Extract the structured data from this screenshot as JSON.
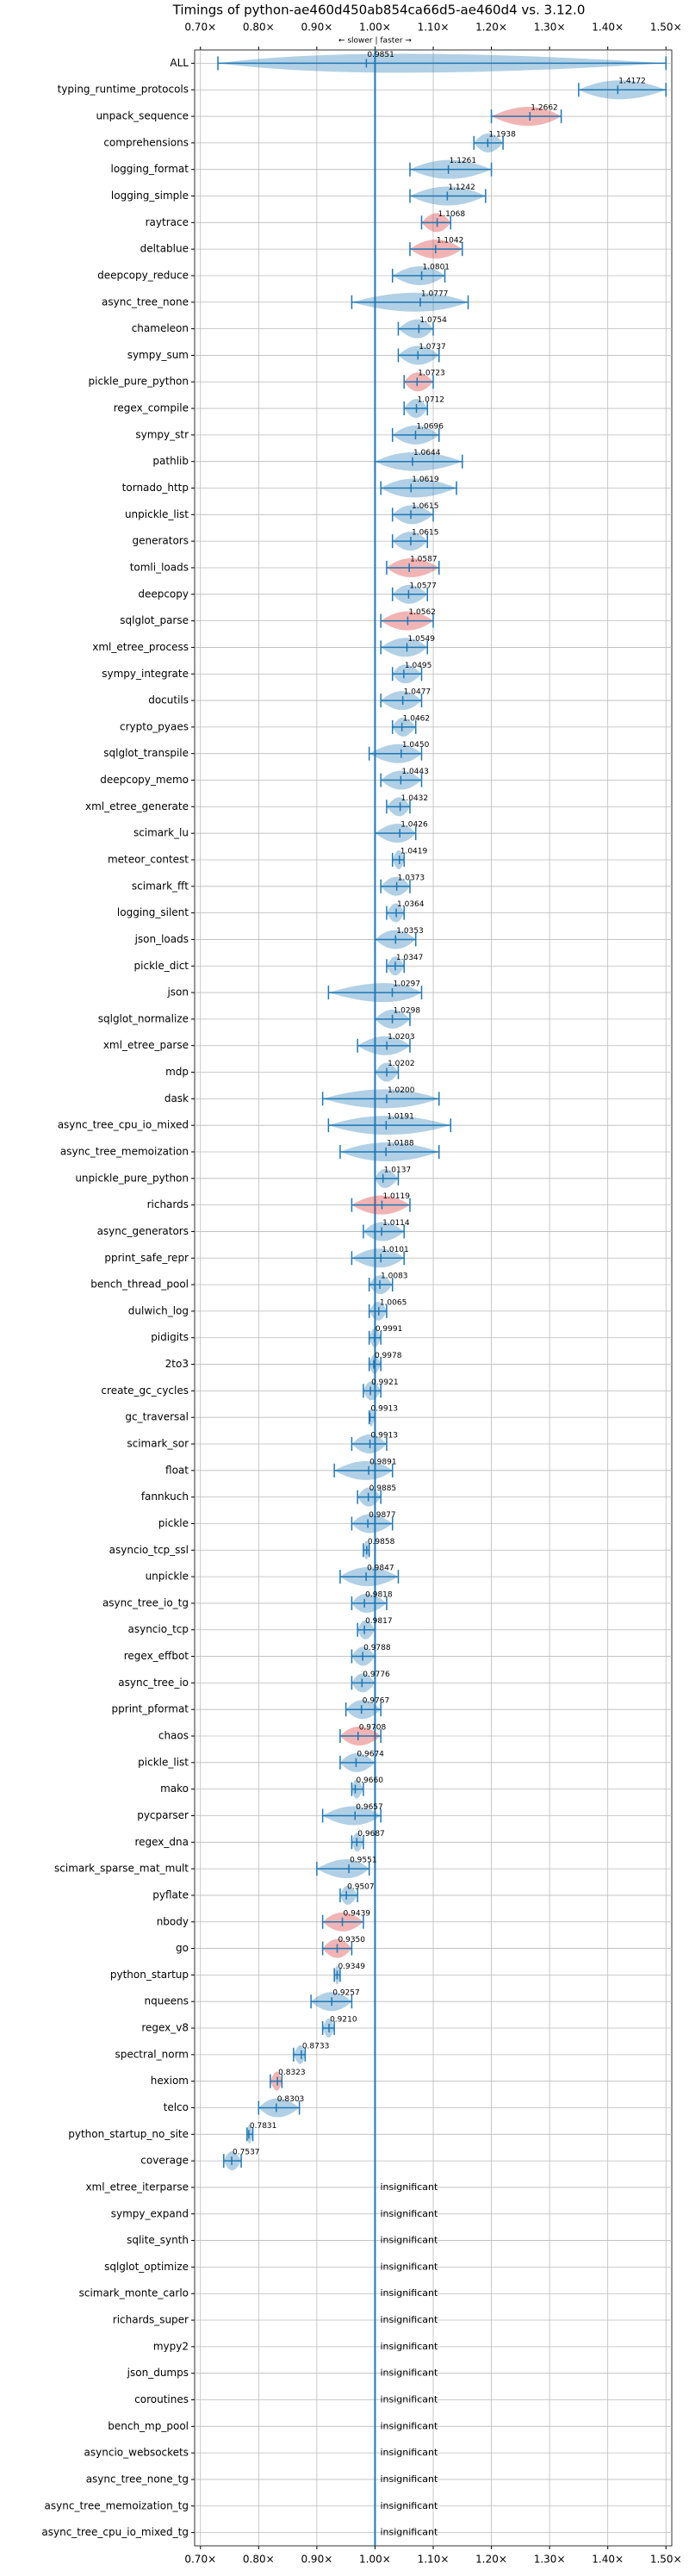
{
  "chart_data": {
    "type": "violin",
    "title": "Timings of python-ae460d450ab854ca66d5-ae460d4 vs. 3.12.0",
    "annotation": "← slower | faster →",
    "xlim": [
      0.69,
      1.51
    ],
    "xticks": [
      {
        "value": 0.7,
        "label": "0.70×"
      },
      {
        "value": 0.8,
        "label": "0.80×"
      },
      {
        "value": 0.9,
        "label": "0.90×"
      },
      {
        "value": 1.0,
        "label": "1.00×"
      },
      {
        "value": 1.1,
        "label": "1.10×"
      },
      {
        "value": 1.2,
        "label": "1.20×"
      },
      {
        "value": 1.3,
        "label": "1.30×"
      },
      {
        "value": 1.4,
        "label": "1.40×"
      },
      {
        "value": 1.5,
        "label": "1.50×"
      }
    ],
    "baseline": 1,
    "grid": true,
    "categories": [
      "ALL",
      "typing_runtime_protocols",
      "unpack_sequence",
      "comprehensions",
      "logging_format",
      "logging_simple",
      "raytrace",
      "deltablue",
      "deepcopy_reduce",
      "async_tree_none",
      "chameleon",
      "sympy_sum",
      "pickle_pure_python",
      "regex_compile",
      "sympy_str",
      "pathlib",
      "tornado_http",
      "unpickle_list",
      "generators",
      "tomli_loads",
      "deepcopy",
      "sqlglot_parse",
      "xml_etree_process",
      "sympy_integrate",
      "docutils",
      "crypto_pyaes",
      "sqlglot_transpile",
      "deepcopy_memo",
      "xml_etree_generate",
      "scimark_lu",
      "meteor_contest",
      "scimark_fft",
      "logging_silent",
      "json_loads",
      "pickle_dict",
      "json",
      "sqlglot_normalize",
      "xml_etree_parse",
      "mdp",
      "dask",
      "async_tree_cpu_io_mixed",
      "async_tree_memoization",
      "unpickle_pure_python",
      "richards",
      "async_generators",
      "pprint_safe_repr",
      "bench_thread_pool",
      "dulwich_log",
      "pidigits",
      "2to3",
      "create_gc_cycles",
      "gc_traversal",
      "scimark_sor",
      "float",
      "fannkuch",
      "pickle",
      "asyncio_tcp_ssl",
      "unpickle",
      "async_tree_io_tg",
      "asyncio_tcp",
      "regex_effbot",
      "async_tree_io",
      "pprint_pformat",
      "chaos",
      "pickle_list",
      "mako",
      "pycparser",
      "regex_dna",
      "scimark_sparse_mat_mult",
      "pyflate",
      "nbody",
      "go",
      "python_startup",
      "nqueens",
      "regex_v8",
      "spectral_norm",
      "hexiom",
      "telco",
      "python_startup_no_site",
      "coverage",
      "xml_etree_iterparse",
      "sympy_expand",
      "sqlite_synth",
      "sqlglot_optimize",
      "scimark_monte_carlo",
      "richards_super",
      "mypy2",
      "json_dumps",
      "coroutines",
      "bench_mp_pool",
      "asyncio_websockets",
      "async_tree_none_tg",
      "async_tree_memoization_tg",
      "async_tree_cpu_io_mixed_tg"
    ],
    "values": [
      0.9851,
      1.4172,
      1.2662,
      1.1938,
      1.1261,
      1.1242,
      1.1068,
      1.1042,
      1.0801,
      1.0777,
      1.0754,
      1.0737,
      1.0723,
      1.0712,
      1.0696,
      1.0644,
      1.0619,
      1.0615,
      1.0615,
      1.0587,
      1.0577,
      1.0562,
      1.0549,
      1.0495,
      1.0477,
      1.0462,
      1.045,
      1.0443,
      1.0432,
      1.0426,
      1.0419,
      1.0373,
      1.0364,
      1.0353,
      1.0347,
      1.0297,
      1.0298,
      1.0203,
      1.0202,
      1.02,
      1.0191,
      1.0188,
      1.0137,
      1.0119,
      1.0114,
      1.0101,
      1.0083,
      1.0065,
      0.9991,
      0.9978,
      0.9921,
      0.9913,
      0.9913,
      0.9891,
      0.9885,
      0.9877,
      0.9858,
      0.9847,
      0.9818,
      0.9817,
      0.9788,
      0.9776,
      0.9767,
      0.9708,
      0.9674,
      0.966,
      0.9657,
      0.9687,
      0.9551,
      0.9507,
      0.9439,
      0.935,
      0.9349,
      0.9257,
      0.921,
      0.8733,
      0.8323,
      0.8303,
      0.7831,
      0.7537,
      null,
      null,
      null,
      null,
      null,
      null,
      null,
      null,
      null,
      null,
      null,
      null,
      null,
      null
    ],
    "value_labels": [
      "0.9851",
      "1.4172",
      "1.2662",
      "1.1938",
      "1.1261",
      "1.1242",
      "1.1068",
      "1.1042",
      "1.0801",
      "1.0777",
      "1.0754",
      "1.0737",
      "1.0723",
      "1.0712",
      "1.0696",
      "1.0644",
      "1.0619",
      "1.0615",
      "1.0615",
      "1.0587",
      "1.0577",
      "1.0562",
      "1.0549",
      "1.0495",
      "1.0477",
      "1.0462",
      "1.0450",
      "1.0443",
      "1.0432",
      "1.0426",
      "1.0419",
      "1.0373",
      "1.0364",
      "1.0353",
      "1.0347",
      "1.0297",
      "1.0298",
      "1.0203",
      "1.0202",
      "1.0200",
      "1.0191",
      "1.0188",
      "1.0137",
      "1.0119",
      "1.0114",
      "1.0101",
      "1.0083",
      "1.0065",
      "0.9991",
      "0.9978",
      "0.9921",
      "0.9913",
      "0.9913",
      "0.9891",
      "0.9885",
      "0.9877",
      "0.9858",
      "0.9847",
      "0.9818",
      "0.9817",
      "0.9788",
      "0.9776",
      "0.9767",
      "0.9708",
      "0.9674",
      "0.9660",
      "0.9657",
      "0.9687",
      "0.9551",
      "0.9507",
      "0.9439",
      "0.9350",
      "0.9349",
      "0.9257",
      "0.9210",
      "0.8733",
      "0.8323",
      "0.8303",
      "0.7831",
      "0.7537",
      "insignificant",
      "insignificant",
      "insignificant",
      "insignificant",
      "insignificant",
      "insignificant",
      "insignificant",
      "insignificant",
      "insignificant",
      "insignificant",
      "insignificant",
      "insignificant",
      "insignificant",
      "insignificant"
    ],
    "ranges": [
      [
        0.73,
        1.5
      ],
      [
        1.35,
        1.5
      ],
      [
        1.2,
        1.32
      ],
      [
        1.17,
        1.22
      ],
      [
        1.06,
        1.2
      ],
      [
        1.06,
        1.19
      ],
      [
        1.08,
        1.13
      ],
      [
        1.06,
        1.15
      ],
      [
        1.03,
        1.12
      ],
      [
        0.96,
        1.16
      ],
      [
        1.04,
        1.1
      ],
      [
        1.04,
        1.11
      ],
      [
        1.05,
        1.1
      ],
      [
        1.05,
        1.09
      ],
      [
        1.03,
        1.11
      ],
      [
        1.0,
        1.15
      ],
      [
        1.01,
        1.14
      ],
      [
        1.03,
        1.1
      ],
      [
        1.03,
        1.09
      ],
      [
        1.02,
        1.11
      ],
      [
        1.03,
        1.09
      ],
      [
        1.01,
        1.1
      ],
      [
        1.01,
        1.09
      ],
      [
        1.03,
        1.08
      ],
      [
        1.01,
        1.08
      ],
      [
        1.03,
        1.07
      ],
      [
        0.99,
        1.08
      ],
      [
        1.01,
        1.08
      ],
      [
        1.02,
        1.06
      ],
      [
        1.0,
        1.07
      ],
      [
        1.03,
        1.05
      ],
      [
        1.01,
        1.06
      ],
      [
        1.02,
        1.05
      ],
      [
        1.0,
        1.07
      ],
      [
        1.02,
        1.05
      ],
      [
        0.92,
        1.08
      ],
      [
        1.0,
        1.06
      ],
      [
        0.97,
        1.06
      ],
      [
        1.0,
        1.04
      ],
      [
        0.91,
        1.11
      ],
      [
        0.92,
        1.13
      ],
      [
        0.94,
        1.11
      ],
      [
        1.0,
        1.04
      ],
      [
        0.96,
        1.06
      ],
      [
        0.98,
        1.05
      ],
      [
        0.96,
        1.05
      ],
      [
        0.99,
        1.03
      ],
      [
        0.99,
        1.02
      ],
      [
        0.99,
        1.01
      ],
      [
        0.99,
        1.01
      ],
      [
        0.98,
        1.01
      ],
      [
        0.99,
        1.0
      ],
      [
        0.96,
        1.02
      ],
      [
        0.93,
        1.03
      ],
      [
        0.97,
        1.01
      ],
      [
        0.96,
        1.03
      ],
      [
        0.98,
        0.99
      ],
      [
        0.94,
        1.04
      ],
      [
        0.96,
        1.02
      ],
      [
        0.97,
        1.0
      ],
      [
        0.96,
        1.0
      ],
      [
        0.96,
        1.0
      ],
      [
        0.95,
        1.01
      ],
      [
        0.94,
        1.01
      ],
      [
        0.94,
        1.0
      ],
      [
        0.96,
        0.98
      ],
      [
        0.91,
        1.01
      ],
      [
        0.96,
        0.98
      ],
      [
        0.9,
        0.99
      ],
      [
        0.94,
        0.97
      ],
      [
        0.91,
        0.98
      ],
      [
        0.91,
        0.96
      ],
      [
        0.93,
        0.94
      ],
      [
        0.89,
        0.96
      ],
      [
        0.91,
        0.93
      ],
      [
        0.86,
        0.88
      ],
      [
        0.82,
        0.84
      ],
      [
        0.8,
        0.87
      ],
      [
        0.78,
        0.79
      ],
      [
        0.74,
        0.77
      ],
      null,
      null,
      null,
      null,
      null,
      null,
      null,
      null,
      null,
      null,
      null,
      null,
      null,
      null
    ],
    "colors": [
      "#1f77b4",
      "#1f77b4",
      "#d62728",
      "#1f77b4",
      "#1f77b4",
      "#1f77b4",
      "#d62728",
      "#d62728",
      "#1f77b4",
      "#1f77b4",
      "#1f77b4",
      "#1f77b4",
      "#d62728",
      "#1f77b4",
      "#1f77b4",
      "#1f77b4",
      "#1f77b4",
      "#1f77b4",
      "#1f77b4",
      "#d62728",
      "#1f77b4",
      "#d62728",
      "#1f77b4",
      "#1f77b4",
      "#1f77b4",
      "#1f77b4",
      "#1f77b4",
      "#1f77b4",
      "#1f77b4",
      "#1f77b4",
      "#1f77b4",
      "#1f77b4",
      "#1f77b4",
      "#1f77b4",
      "#1f77b4",
      "#1f77b4",
      "#1f77b4",
      "#1f77b4",
      "#1f77b4",
      "#1f77b4",
      "#1f77b4",
      "#1f77b4",
      "#1f77b4",
      "#d62728",
      "#1f77b4",
      "#1f77b4",
      "#1f77b4",
      "#1f77b4",
      "#1f77b4",
      "#1f77b4",
      "#1f77b4",
      "#1f77b4",
      "#1f77b4",
      "#1f77b4",
      "#1f77b4",
      "#1f77b4",
      "#1f77b4",
      "#1f77b4",
      "#1f77b4",
      "#1f77b4",
      "#1f77b4",
      "#1f77b4",
      "#1f77b4",
      "#d62728",
      "#1f77b4",
      "#1f77b4",
      "#1f77b4",
      "#1f77b4",
      "#1f77b4",
      "#1f77b4",
      "#d62728",
      "#d62728",
      "#1f77b4",
      "#1f77b4",
      "#1f77b4",
      "#1f77b4",
      "#d62728",
      "#1f77b4",
      "#1f77b4",
      "#1f77b4",
      null,
      null,
      null,
      null,
      null,
      null,
      null,
      null,
      null,
      null,
      null,
      null,
      null,
      null
    ],
    "whisker_color": "#1f77b4"
  }
}
